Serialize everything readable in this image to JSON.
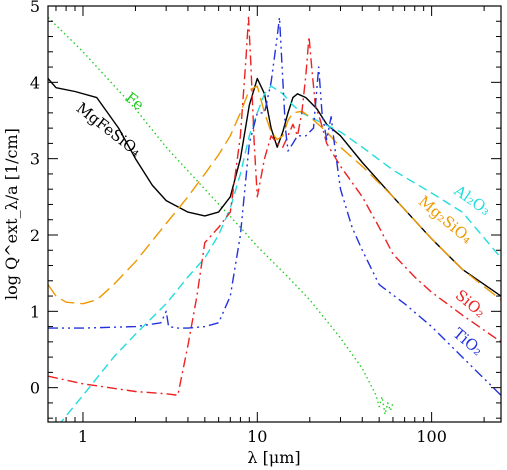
{
  "chart_data": {
    "type": "line",
    "xscale": "log",
    "xlim": [
      0.63,
      250
    ],
    "ylim": [
      -0.45,
      5
    ],
    "xlabel": "λ [μm]",
    "ylabel": "log Q^ext_λ/a [1/cm]",
    "x_ticks": [
      1,
      10,
      100
    ],
    "x_tick_labels": [
      "1",
      "10",
      "100"
    ],
    "y_ticks": [
      0,
      1,
      2,
      3,
      4,
      5
    ],
    "y_tick_labels": [
      "0",
      "1",
      "2",
      "3",
      "4",
      "5"
    ],
    "grid": false,
    "legend": "labels placed next to curves",
    "series": [
      {
        "name": "Fe",
        "color": "#22cc22",
        "dash": "1.5,3",
        "label_text": "Fe",
        "label_at": [
          1.9,
          3.7
        ],
        "label_angle": 38,
        "points": [
          [
            0.63,
            4.85
          ],
          [
            1,
            4.4
          ],
          [
            2,
            3.65
          ],
          [
            3,
            3.15
          ],
          [
            5,
            2.6
          ],
          [
            8,
            2.1
          ],
          [
            10,
            1.85
          ],
          [
            15,
            1.45
          ],
          [
            20,
            1.15
          ],
          [
            30,
            0.65
          ],
          [
            40,
            0.25
          ],
          [
            48,
            -0.1
          ],
          [
            50,
            -0.25
          ],
          [
            52,
            -0.12
          ],
          [
            54,
            -0.35
          ],
          [
            56,
            -0.2
          ],
          [
            58,
            -0.3
          ],
          [
            60,
            -0.2
          ]
        ]
      },
      {
        "name": "MgFeSiO4",
        "color": "#000000",
        "dash": "",
        "label_text": "MgFeSiO₄",
        "label_at": [
          1.35,
          3.33
        ],
        "label_angle": 38,
        "points": [
          [
            0.63,
            4.05
          ],
          [
            0.7,
            3.93
          ],
          [
            0.9,
            3.88
          ],
          [
            1.2,
            3.8
          ],
          [
            1.6,
            3.4
          ],
          [
            2,
            3
          ],
          [
            2.5,
            2.65
          ],
          [
            3,
            2.45
          ],
          [
            4,
            2.3
          ],
          [
            5,
            2.25
          ],
          [
            6,
            2.3
          ],
          [
            7,
            2.5
          ],
          [
            8,
            3
          ],
          [
            9,
            3.7
          ],
          [
            10,
            4.05
          ],
          [
            11,
            3.85
          ],
          [
            12,
            3.4
          ],
          [
            13,
            3.15
          ],
          [
            14,
            3.35
          ],
          [
            15,
            3.6
          ],
          [
            16,
            3.8
          ],
          [
            17,
            3.85
          ],
          [
            19,
            3.8
          ],
          [
            22,
            3.65
          ],
          [
            25,
            3.45
          ],
          [
            30,
            3.3
          ],
          [
            40,
            2.95
          ],
          [
            60,
            2.5
          ],
          [
            100,
            1.95
          ],
          [
            150,
            1.55
          ],
          [
            250,
            1.2
          ]
        ]
      },
      {
        "name": "Al2O3",
        "color": "#22dddd",
        "dash": "9,5",
        "label_text": "Al₂O₃",
        "label_at": [
          165,
          2.4
        ],
        "label_angle": 35,
        "points": [
          [
            0.72,
            -0.5
          ],
          [
            1,
            -0.1
          ],
          [
            1.5,
            0.4
          ],
          [
            2,
            0.7
          ],
          [
            3,
            1.1
          ],
          [
            4,
            1.45
          ],
          [
            5,
            1.7
          ],
          [
            6,
            2
          ],
          [
            7,
            2.35
          ],
          [
            8,
            2.8
          ],
          [
            9,
            3.3
          ],
          [
            10,
            3.6
          ],
          [
            11,
            3.85
          ],
          [
            12,
            3.95
          ],
          [
            14,
            3.85
          ],
          [
            16,
            3.7
          ],
          [
            18,
            3.6
          ],
          [
            22,
            3.5
          ],
          [
            30,
            3.35
          ],
          [
            40,
            3.15
          ],
          [
            60,
            2.85
          ],
          [
            100,
            2.55
          ],
          [
            150,
            2.3
          ],
          [
            250,
            1.7
          ]
        ]
      },
      {
        "name": "Mg2SiO4",
        "color": "#ee9900",
        "dash": "14,6",
        "label_text": "Mg₂SiO₄",
        "label_at": [
          115,
          2.15
        ],
        "label_angle": 40,
        "points": [
          [
            0.63,
            1.35
          ],
          [
            0.7,
            1.2
          ],
          [
            0.8,
            1.12
          ],
          [
            1,
            1.1
          ],
          [
            1.2,
            1.15
          ],
          [
            1.5,
            1.35
          ],
          [
            2,
            1.65
          ],
          [
            3,
            2.15
          ],
          [
            4,
            2.5
          ],
          [
            5,
            2.8
          ],
          [
            6,
            3.05
          ],
          [
            7,
            3.3
          ],
          [
            8,
            3.6
          ],
          [
            9,
            3.9
          ],
          [
            10,
            3.95
          ],
          [
            11,
            3.6
          ],
          [
            12,
            3.35
          ],
          [
            13,
            3.25
          ],
          [
            14,
            3.3
          ],
          [
            15,
            3.5
          ],
          [
            16,
            3.6
          ],
          [
            18,
            3.62
          ],
          [
            20,
            3.55
          ],
          [
            25,
            3.35
          ],
          [
            30,
            3.15
          ],
          [
            40,
            2.9
          ],
          [
            60,
            2.5
          ],
          [
            100,
            1.95
          ],
          [
            150,
            1.55
          ],
          [
            250,
            1.15
          ]
        ]
      },
      {
        "name": "SiO2",
        "color": "#ee2222",
        "dash": "10,4,2,4",
        "label_text": "SiO₂",
        "label_at": [
          160,
          1.05
        ],
        "label_angle": 40,
        "points": [
          [
            0.63,
            0.15
          ],
          [
            1,
            0.05
          ],
          [
            2,
            -0.05
          ],
          [
            3,
            -0.08
          ],
          [
            3.5,
            -0.1
          ],
          [
            4,
            0.55
          ],
          [
            4.5,
            1.2
          ],
          [
            5,
            1.9
          ],
          [
            6,
            2.1
          ],
          [
            7,
            2.3
          ],
          [
            8,
            3.3
          ],
          [
            8.6,
            4.3
          ],
          [
            8.9,
            4.85
          ],
          [
            9.2,
            4.2
          ],
          [
            9.6,
            3.2
          ],
          [
            10,
            2.5
          ],
          [
            11,
            3
          ],
          [
            12,
            3.3
          ],
          [
            13,
            3.2
          ],
          [
            14,
            3.15
          ],
          [
            15,
            3.3
          ],
          [
            16,
            3.45
          ],
          [
            17,
            3.3
          ],
          [
            18,
            3.6
          ],
          [
            19,
            4.1
          ],
          [
            19.8,
            4.6
          ],
          [
            20.5,
            4.2
          ],
          [
            21.5,
            3.7
          ],
          [
            23,
            3.5
          ],
          [
            25,
            3.2
          ],
          [
            30,
            2.9
          ],
          [
            40,
            2.5
          ],
          [
            50,
            2.1
          ],
          [
            60,
            1.75
          ],
          [
            80,
            1.45
          ],
          [
            100,
            1.25
          ],
          [
            150,
            0.95
          ],
          [
            250,
            0.6
          ]
        ]
      },
      {
        "name": "TiO2",
        "color": "#2233dd",
        "dash": "10,4,2,4,2,4",
        "label_text": "TiO₂",
        "label_at": [
          155,
          0.55
        ],
        "label_angle": 40,
        "points": [
          [
            0.63,
            0.78
          ],
          [
            1,
            0.78
          ],
          [
            2,
            0.8
          ],
          [
            2.8,
            0.85
          ],
          [
            3,
            1
          ],
          [
            3.1,
            0.8
          ],
          [
            3.5,
            0.78
          ],
          [
            4,
            0.78
          ],
          [
            5,
            0.8
          ],
          [
            6,
            0.85
          ],
          [
            7,
            1.2
          ],
          [
            8,
            2
          ],
          [
            9,
            3.2
          ],
          [
            10,
            3.6
          ],
          [
            11,
            3.6
          ],
          [
            12,
            4
          ],
          [
            13,
            4.6
          ],
          [
            13.4,
            4.85
          ],
          [
            13.8,
            4.3
          ],
          [
            14.5,
            3.4
          ],
          [
            15,
            3.1
          ],
          [
            16,
            3.2
          ],
          [
            17,
            3.3
          ],
          [
            19,
            3.3
          ],
          [
            21,
            3.4
          ],
          [
            22.5,
            4.2
          ],
          [
            23.5,
            3.6
          ],
          [
            25,
            3.25
          ],
          [
            26.5,
            3.55
          ],
          [
            28,
            3.1
          ],
          [
            30,
            2.6
          ],
          [
            35,
            2.1
          ],
          [
            40,
            1.8
          ],
          [
            50,
            1.35
          ],
          [
            70,
            1.1
          ],
          [
            100,
            0.8
          ],
          [
            150,
            0.4
          ],
          [
            250,
            -0.1
          ]
        ]
      }
    ]
  }
}
